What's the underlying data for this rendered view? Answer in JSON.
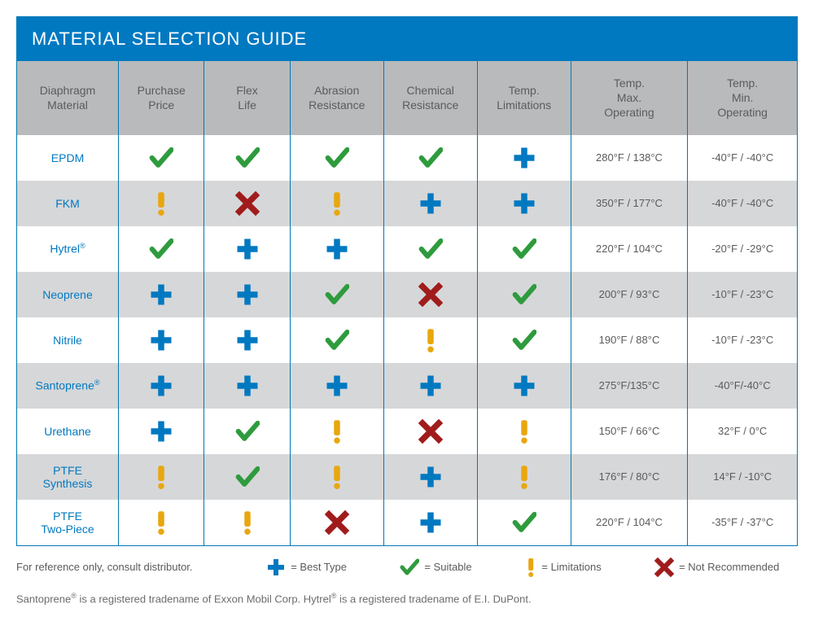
{
  "title": "MATERIAL SELECTION GUIDE",
  "columns": [
    "Diaphragm Material",
    "Purchase Price",
    "Flex Life",
    "Abrasion Resistance",
    "Chemical Resistance",
    "Temp. Limitations",
    "Temp. Max. Operating",
    "Temp. Min. Operating"
  ],
  "icons": {
    "plus": {
      "meaning": "Best Type",
      "color": "#0079c1"
    },
    "check": {
      "meaning": "Suitable",
      "color": "#2e9b3d"
    },
    "exclaim": {
      "meaning": "Limitations",
      "color": "#e8a70f"
    },
    "x": {
      "meaning": "Not Recommended",
      "color": "#a01c1c"
    }
  },
  "rows": [
    {
      "material": "EPDM",
      "ratings": [
        "check",
        "check",
        "check",
        "check",
        "plus"
      ],
      "tmax": "280°F / 138°C",
      "tmin": "-40°F / -40°C"
    },
    {
      "material": "FKM",
      "ratings": [
        "exclaim",
        "x",
        "exclaim",
        "plus",
        "plus"
      ],
      "tmax": "350°F / 177°C",
      "tmin": "-40°F / -40°C"
    },
    {
      "material": "Hytrel®",
      "ratings": [
        "check",
        "plus",
        "plus",
        "check",
        "check"
      ],
      "tmax": "220°F / 104°C",
      "tmin": "-20°F / -29°C"
    },
    {
      "material": "Neoprene",
      "ratings": [
        "plus",
        "plus",
        "check",
        "x",
        "check"
      ],
      "tmax": "200°F / 93°C",
      "tmin": "-10°F / -23°C"
    },
    {
      "material": "Nitrile",
      "ratings": [
        "plus",
        "plus",
        "check",
        "exclaim",
        "check"
      ],
      "tmax": "190°F / 88°C",
      "tmin": "-10°F / -23°C"
    },
    {
      "material": "Santoprene®",
      "ratings": [
        "plus",
        "plus",
        "plus",
        "plus",
        "plus"
      ],
      "tmax": "275°F/135°C",
      "tmin": "-40°F/-40°C"
    },
    {
      "material": "Urethane",
      "ratings": [
        "plus",
        "check",
        "exclaim",
        "x",
        "exclaim"
      ],
      "tmax": "150°F / 66°C",
      "tmin": "32°F / 0°C"
    },
    {
      "material": "PTFE Synthesis",
      "ratings": [
        "exclaim",
        "check",
        "exclaim",
        "plus",
        "exclaim"
      ],
      "tmax": "176°F / 80°C",
      "tmin": "14°F / -10°C"
    },
    {
      "material": "PTFE Two-Piece",
      "ratings": [
        "exclaim",
        "exclaim",
        "x",
        "plus",
        "check"
      ],
      "tmax": "220°F / 104°C",
      "tmin": "-35°F / -37°C"
    }
  ],
  "legend_ref": "For reference only, consult distributor.",
  "legend": [
    {
      "icon": "plus",
      "label": "= Best Type"
    },
    {
      "icon": "check",
      "label": "= Suitable"
    },
    {
      "icon": "exclaim",
      "label": "= Limitations"
    },
    {
      "icon": "x",
      "label": "= Not Recommended"
    }
  ],
  "footnote": "Santoprene® is a registered tradename of Exxon Mobil Corp. Hytrel® is a registered tradename of E.I. DuPont.",
  "column_widths": [
    "13%",
    "11%",
    "11%",
    "12%",
    "12%",
    "12%",
    "15%",
    "14%"
  ]
}
